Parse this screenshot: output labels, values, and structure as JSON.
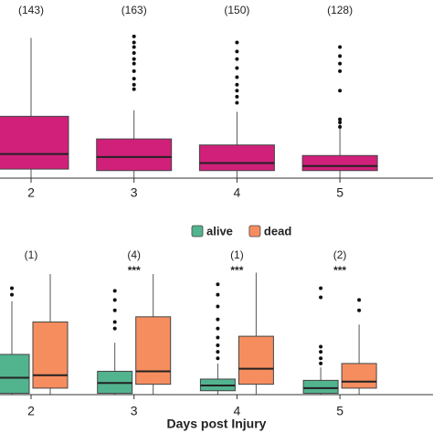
{
  "chart_data": [
    {
      "type": "box",
      "categories": [
        "2",
        "3",
        "4",
        "5"
      ],
      "annotations": [
        "(143)",
        "(163)",
        "(150)",
        "(128)"
      ],
      "ylim": [
        0,
        100
      ],
      "series": [
        {
          "color": "#d0207a",
          "boxes": [
            {
              "low": 0,
              "q1": 6,
              "median": 16,
              "q3": 41,
              "high": 93,
              "outliers": []
            },
            {
              "low": 0,
              "q1": 5,
              "median": 14,
              "q3": 26,
              "high": 45,
              "outliers": [
                94,
                90,
                87,
                83,
                79,
                76,
                71,
                66,
                62,
                59
              ]
            },
            {
              "low": 0,
              "q1": 5,
              "median": 10,
              "q3": 22,
              "high": 44,
              "outliers": [
                90,
                84,
                79,
                73,
                67,
                62,
                58,
                54,
                50
              ]
            },
            {
              "low": 0,
              "q1": 5,
              "median": 8,
              "q3": 15,
              "high": 36,
              "outliers": [
                87,
                81,
                76,
                71,
                58,
                39,
                37,
                34
              ]
            }
          ]
        }
      ]
    },
    {
      "type": "box",
      "categories": [
        "2",
        "3",
        "4",
        "5"
      ],
      "annotations": [
        "(1)",
        "(4)",
        "(1)",
        "(2)"
      ],
      "significance": [
        null,
        "***",
        "***",
        "***"
      ],
      "x_label": "Days post Injury",
      "ylim": [
        0,
        100
      ],
      "series": [
        {
          "name": "alive",
          "color": "#52b38f",
          "boxes": [
            {
              "low": 0,
              "q1": 1,
              "median": 13,
              "q3": 31,
              "high": 72,
              "outliers": [
                82,
                77
              ]
            },
            {
              "low": 0,
              "q1": 1,
              "median": 9,
              "q3": 18,
              "high": 40,
              "outliers": [
                80,
                73,
                65,
                56,
                51
              ]
            },
            {
              "low": 0,
              "q1": 3,
              "median": 7,
              "q3": 12,
              "high": 24,
              "outliers": [
                85,
                77,
                68,
                58,
                51,
                44,
                38,
                33,
                28
              ]
            },
            {
              "low": 0,
              "q1": 1,
              "median": 5,
              "q3": 11,
              "high": 21,
              "outliers": [
                82,
                75,
                37,
                33,
                28,
                24
              ]
            }
          ]
        },
        {
          "name": "dead",
          "color": "#f68d5f",
          "boxes": [
            {
              "low": 0,
              "q1": 5,
              "median": 15,
              "q3": 56,
              "high": 93,
              "outliers": []
            },
            {
              "low": 0,
              "q1": 8,
              "median": 18,
              "q3": 60,
              "high": 93,
              "outliers": []
            },
            {
              "low": 0,
              "q1": 8,
              "median": 20,
              "q3": 45,
              "high": 94,
              "outliers": []
            },
            {
              "low": 0,
              "q1": 5,
              "median": 10,
              "q3": 24,
              "high": 54,
              "outliers": [
                73,
                65
              ]
            }
          ]
        }
      ]
    }
  ]
}
